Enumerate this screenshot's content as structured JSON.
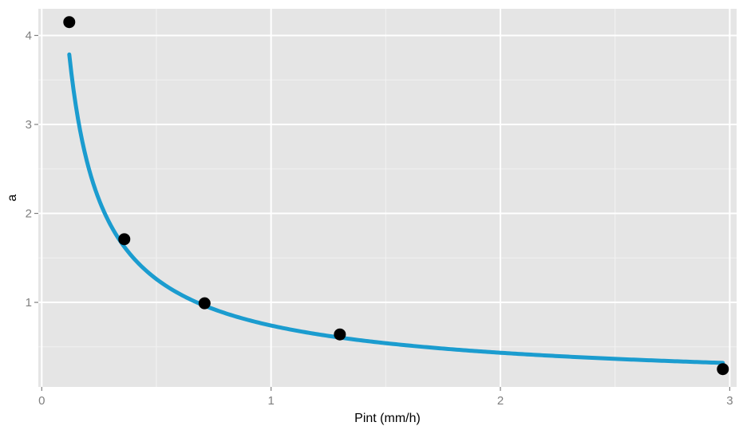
{
  "chart_data": {
    "type": "scatter",
    "xlabel": "Pint (mm/h)",
    "ylabel": "a",
    "xlim": [
      -0.015,
      3.03
    ],
    "ylim": [
      0.05,
      4.3
    ],
    "grid": true,
    "x_ticks": [
      0,
      1,
      2,
      3
    ],
    "y_ticks": [
      1,
      2,
      3,
      4
    ],
    "x_tick_labels": [
      "0",
      "1",
      "2",
      "3"
    ],
    "y_tick_labels": [
      "1",
      "2",
      "3",
      "4"
    ],
    "series": [
      {
        "points": [
          {
            "x": 0.12,
            "y": 4.15
          },
          {
            "x": 0.36,
            "y": 1.71
          },
          {
            "x": 0.71,
            "y": 0.99
          },
          {
            "x": 1.3,
            "y": 0.64
          },
          {
            "x": 2.97,
            "y": 0.25
          }
        ],
        "fit": {
          "type": "power",
          "coef": 0.74,
          "exponent": -0.77,
          "x_range": [
            0.12,
            2.97
          ]
        }
      }
    ],
    "colors": {
      "panel": "#e5e5e5",
      "grid_major": "#ffffff",
      "grid_minor": "#f2f2f2",
      "line": "#1b9ccf",
      "point": "#000000"
    }
  }
}
